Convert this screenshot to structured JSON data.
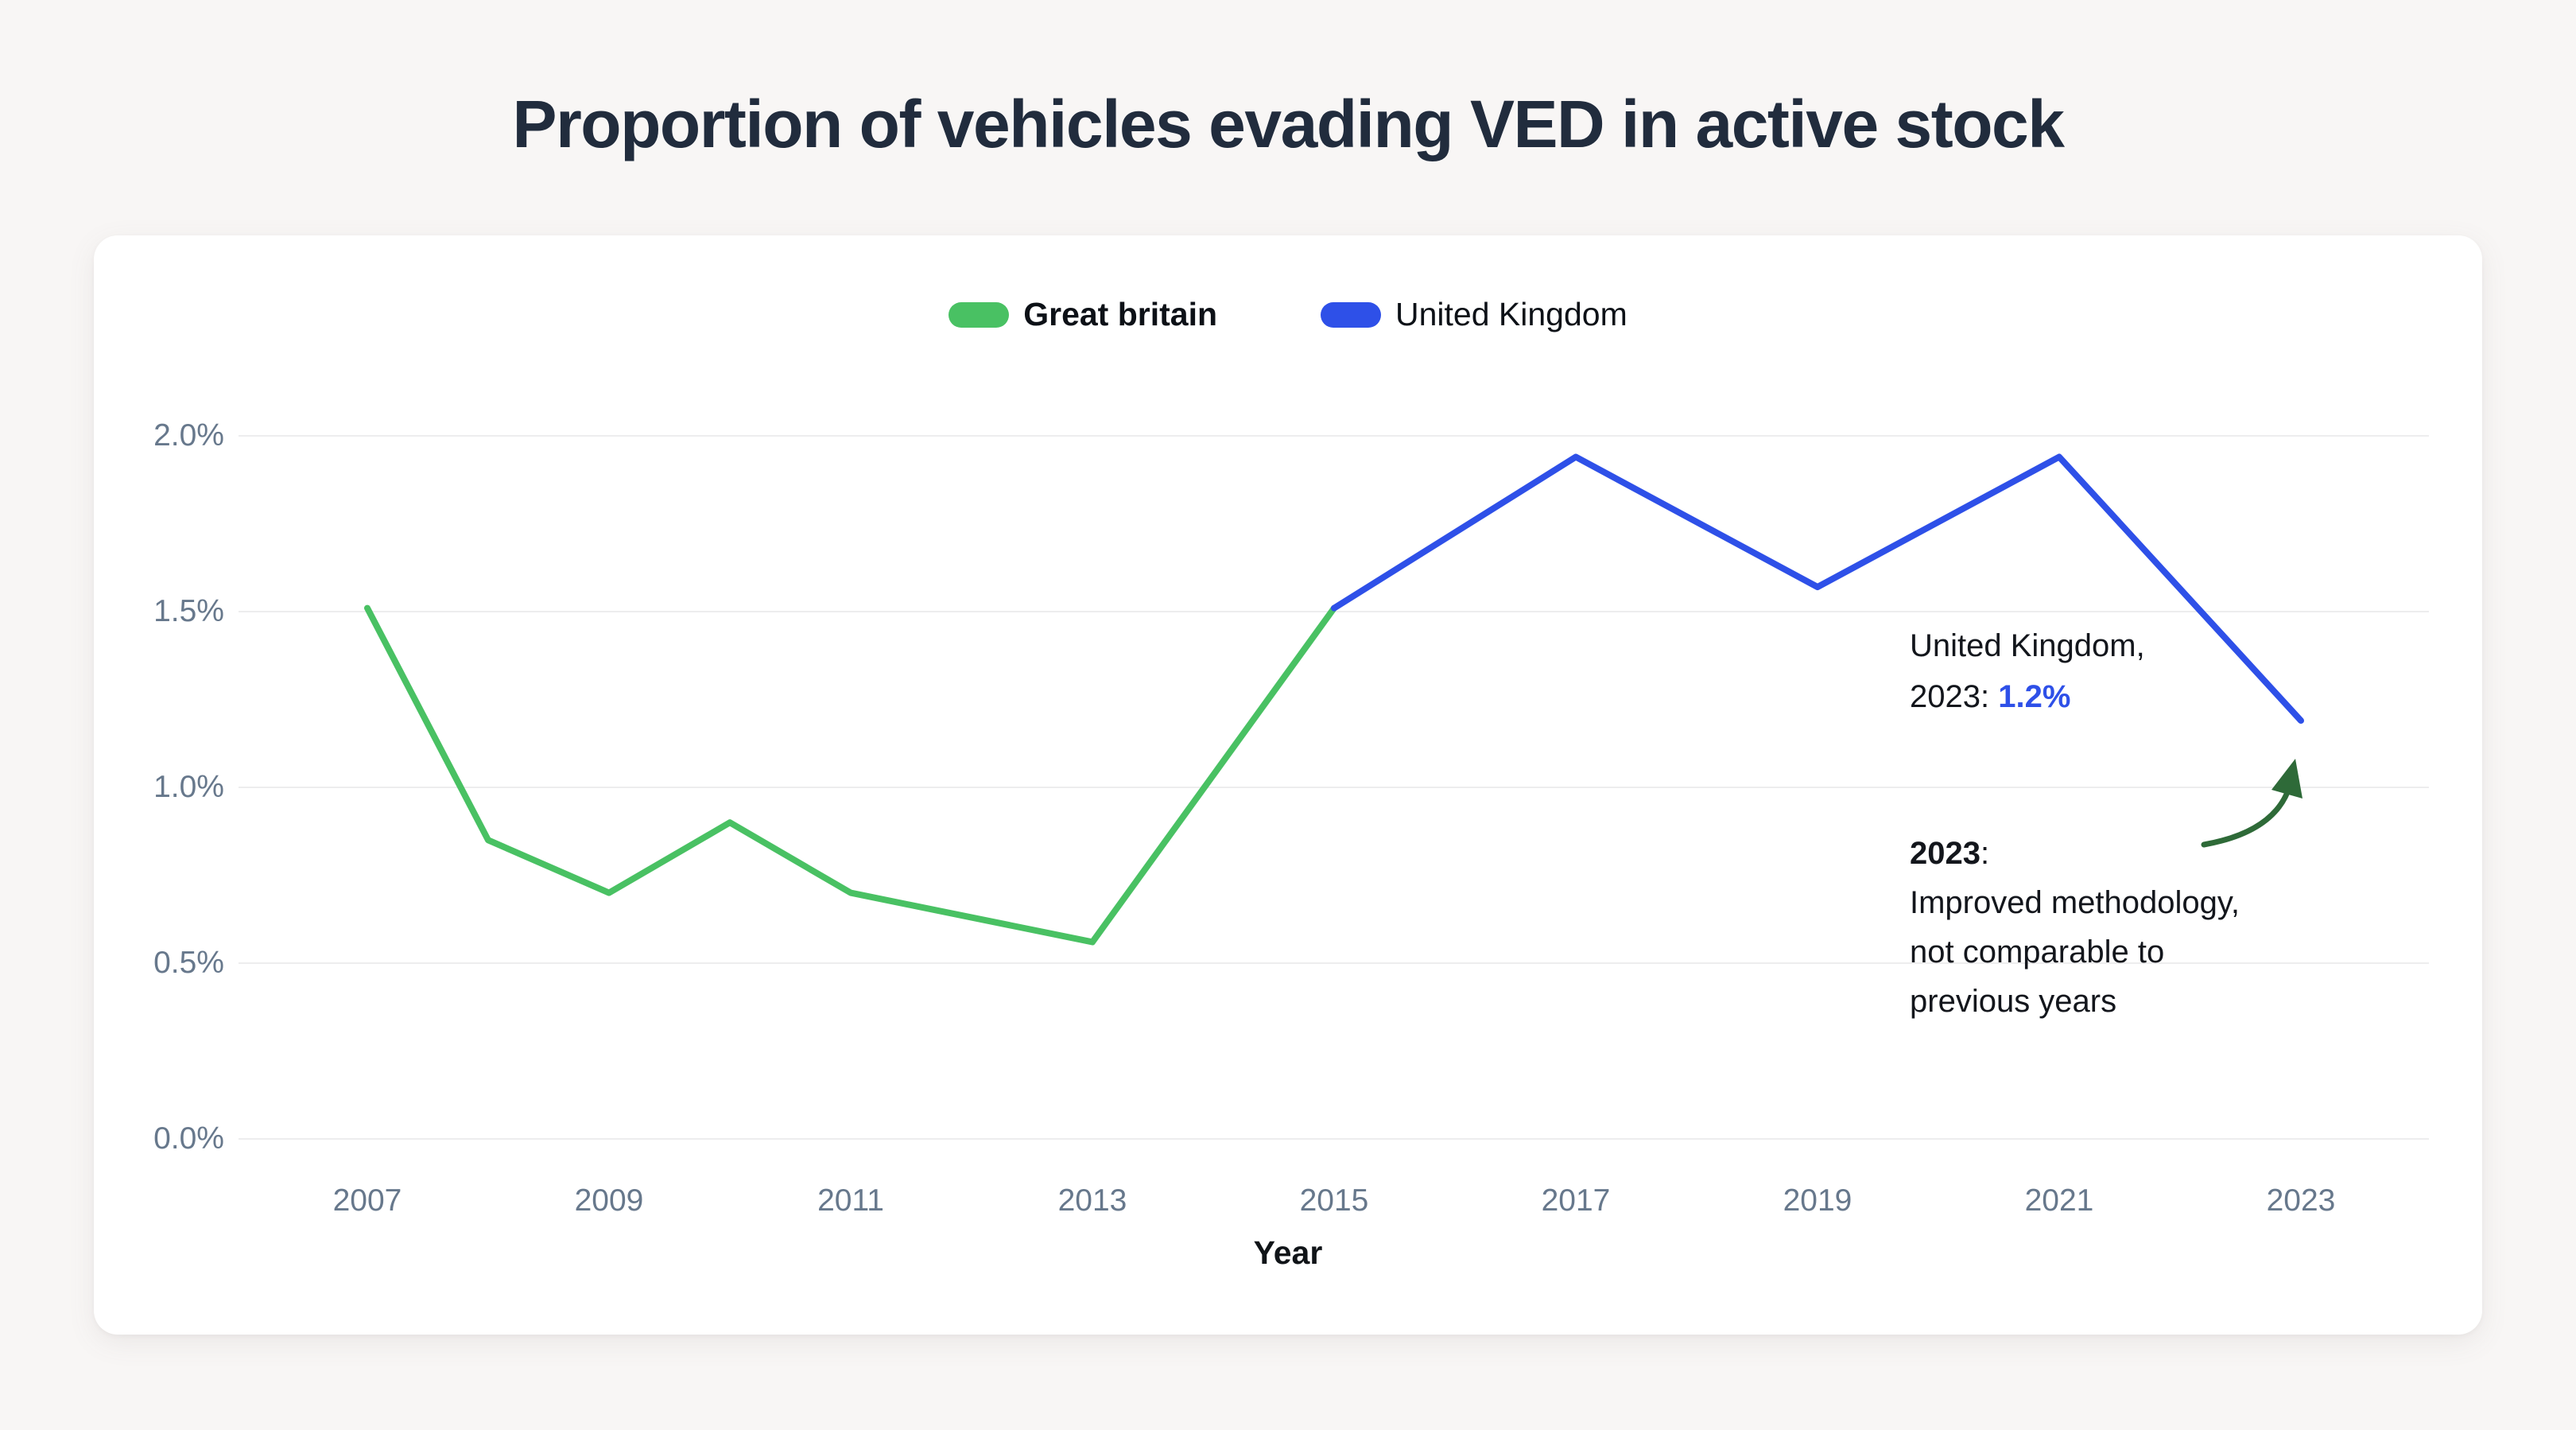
{
  "page": {
    "background_color": "#f8f6f5",
    "title": "Proportion of vehicles evading VED in active stock",
    "title_color": "#212c3d"
  },
  "legend": {
    "items": [
      {
        "label": "Great britain",
        "color": "#49c163",
        "bold": true
      },
      {
        "label": "United Kingdom",
        "color": "#2e50e8",
        "bold": false
      }
    ]
  },
  "chart_data": {
    "type": "line",
    "title": "Proportion of vehicles evading VED in active stock",
    "xlabel": "Year",
    "ylabel": "",
    "x_ticks": [
      "2007",
      "2009",
      "2011",
      "2013",
      "2015",
      "2017",
      "2019",
      "2021",
      "2023"
    ],
    "y_ticks": {
      "values": [
        0,
        0.5,
        1.0,
        1.5,
        2.0
      ],
      "labels": [
        "0.0%",
        "0.5%",
        "1.0%",
        "1.5%",
        "2.0%"
      ]
    },
    "xlim": [
      2006,
      2024
    ],
    "ylim": [
      0,
      2.15
    ],
    "grid": "horizontal-only",
    "legend_position": "top-center",
    "series": [
      {
        "name": "Great britain",
        "color": "#49c163",
        "x": [
          2007,
          2008,
          2009,
          2010,
          2011,
          2013,
          2015
        ],
        "values": [
          1.51,
          0.85,
          0.7,
          0.9,
          0.7,
          0.56,
          1.51
        ]
      },
      {
        "name": "United Kingdom",
        "color": "#2e50e8",
        "x": [
          2015,
          2017,
          2019,
          2021,
          2023
        ],
        "values": [
          1.51,
          1.94,
          1.57,
          1.94,
          1.19
        ]
      }
    ],
    "annotations": {
      "uk_2023": {
        "line1": "United Kingdom,",
        "line2_prefix": "2023: ",
        "value": "1.2%",
        "value_color": "#2e50e8"
      },
      "methodology": {
        "title": "2023",
        "title_suffix": ":",
        "line1": "Improved methodology,",
        "line2": "not comparable to",
        "line3": "previous years"
      },
      "arrow_color": "#2e6a38"
    }
  }
}
